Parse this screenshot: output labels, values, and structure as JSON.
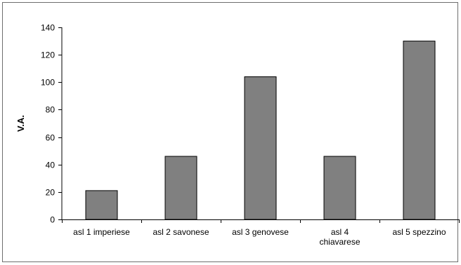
{
  "chart_data": {
    "type": "bar",
    "title": "",
    "xlabel": "",
    "ylabel": "V.A.",
    "categories": [
      [
        "asl 1 imperiese"
      ],
      [
        "asl 2 savonese"
      ],
      [
        "asl 3 genovese"
      ],
      [
        "asl 4",
        "chiavarese"
      ],
      [
        "asl 5 spezzino"
      ]
    ],
    "values": [
      21,
      46,
      104,
      46,
      130
    ],
    "ylim": [
      0,
      140
    ],
    "yticks": [
      0,
      20,
      40,
      60,
      80,
      100,
      120,
      140
    ],
    "grid": false,
    "legend": "none",
    "colors": {
      "bar_fill": "#808080",
      "bar_stroke": "#000000",
      "axis": "#000000",
      "frame": "#6e6e6e"
    }
  }
}
